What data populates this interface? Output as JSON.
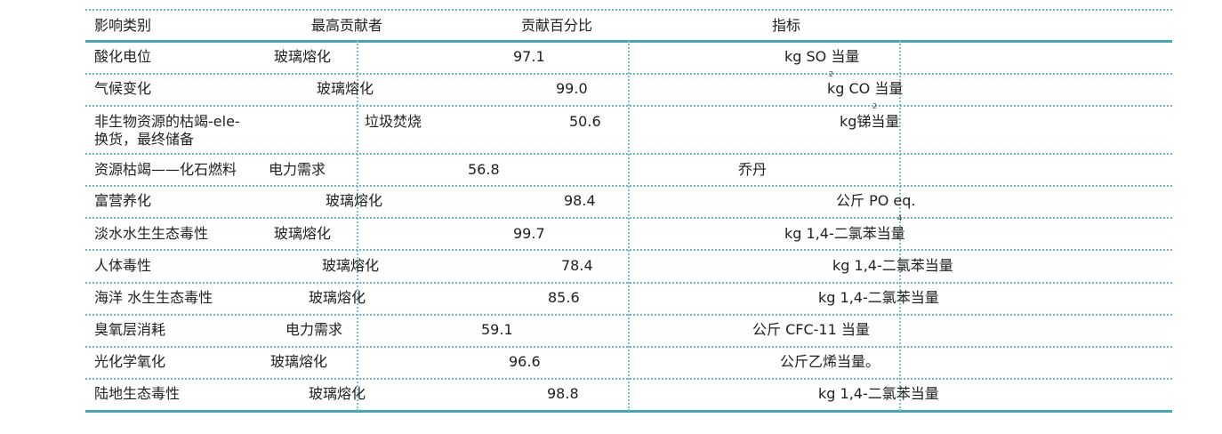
{
  "headers": {
    "category": "影响类别",
    "top_contributor": "最高贡献者",
    "percent": "贡献百分比",
    "indicator": "指标"
  },
  "rows": [
    {
      "category": "酸化电位",
      "contributor": "玻璃熔化",
      "percent": "97.1",
      "indicator": "kg SO  当量",
      "sub": "2"
    },
    {
      "category": "气候变化",
      "contributor": "玻璃熔化",
      "percent": "99.0",
      "indicator": "kg CO  当量",
      "sub": "2"
    },
    {
      "category_line1": "非生物资源的枯竭-ele-",
      "category_line2": "换货，最终储备",
      "contributor": "垃圾焚烧",
      "percent": "50.6",
      "indicator": "kg锑当量"
    },
    {
      "category": "资源枯竭——化石燃料",
      "contributor": "电力需求",
      "percent": "56.8",
      "indicator": "乔丹"
    },
    {
      "category": "富营养化",
      "contributor": "玻璃熔化",
      "percent": "98.4",
      "indicator": "公斤 PO  eq.",
      "sub": "4"
    },
    {
      "category": "淡水水生生态毒性",
      "contributor": "玻璃熔化",
      "percent": "99.7",
      "indicator": "kg 1,4-二氯苯当量"
    },
    {
      "category": "人体毒性",
      "contributor": "玻璃熔化",
      "percent": "78.4",
      "indicator": "kg 1,4-二氯苯当量"
    },
    {
      "category": "海洋 水生生态毒性",
      "contributor": "玻璃熔化",
      "percent": "85.6",
      "indicator": "kg 1,4-二氯苯当量"
    },
    {
      "category": "臭氧层消耗",
      "contributor": "电力需求",
      "percent": "59.1",
      "indicator": "公斤 CFC-11 当量"
    },
    {
      "category": "光化学氧化",
      "contributor": "玻璃熔化",
      "percent": "96.6",
      "indicator": "公斤乙烯当量。"
    },
    {
      "category": "陆地生态毒性",
      "contributor": "玻璃熔化",
      "percent": "98.8",
      "indicator": "kg 1,4-二氯苯当量"
    }
  ]
}
